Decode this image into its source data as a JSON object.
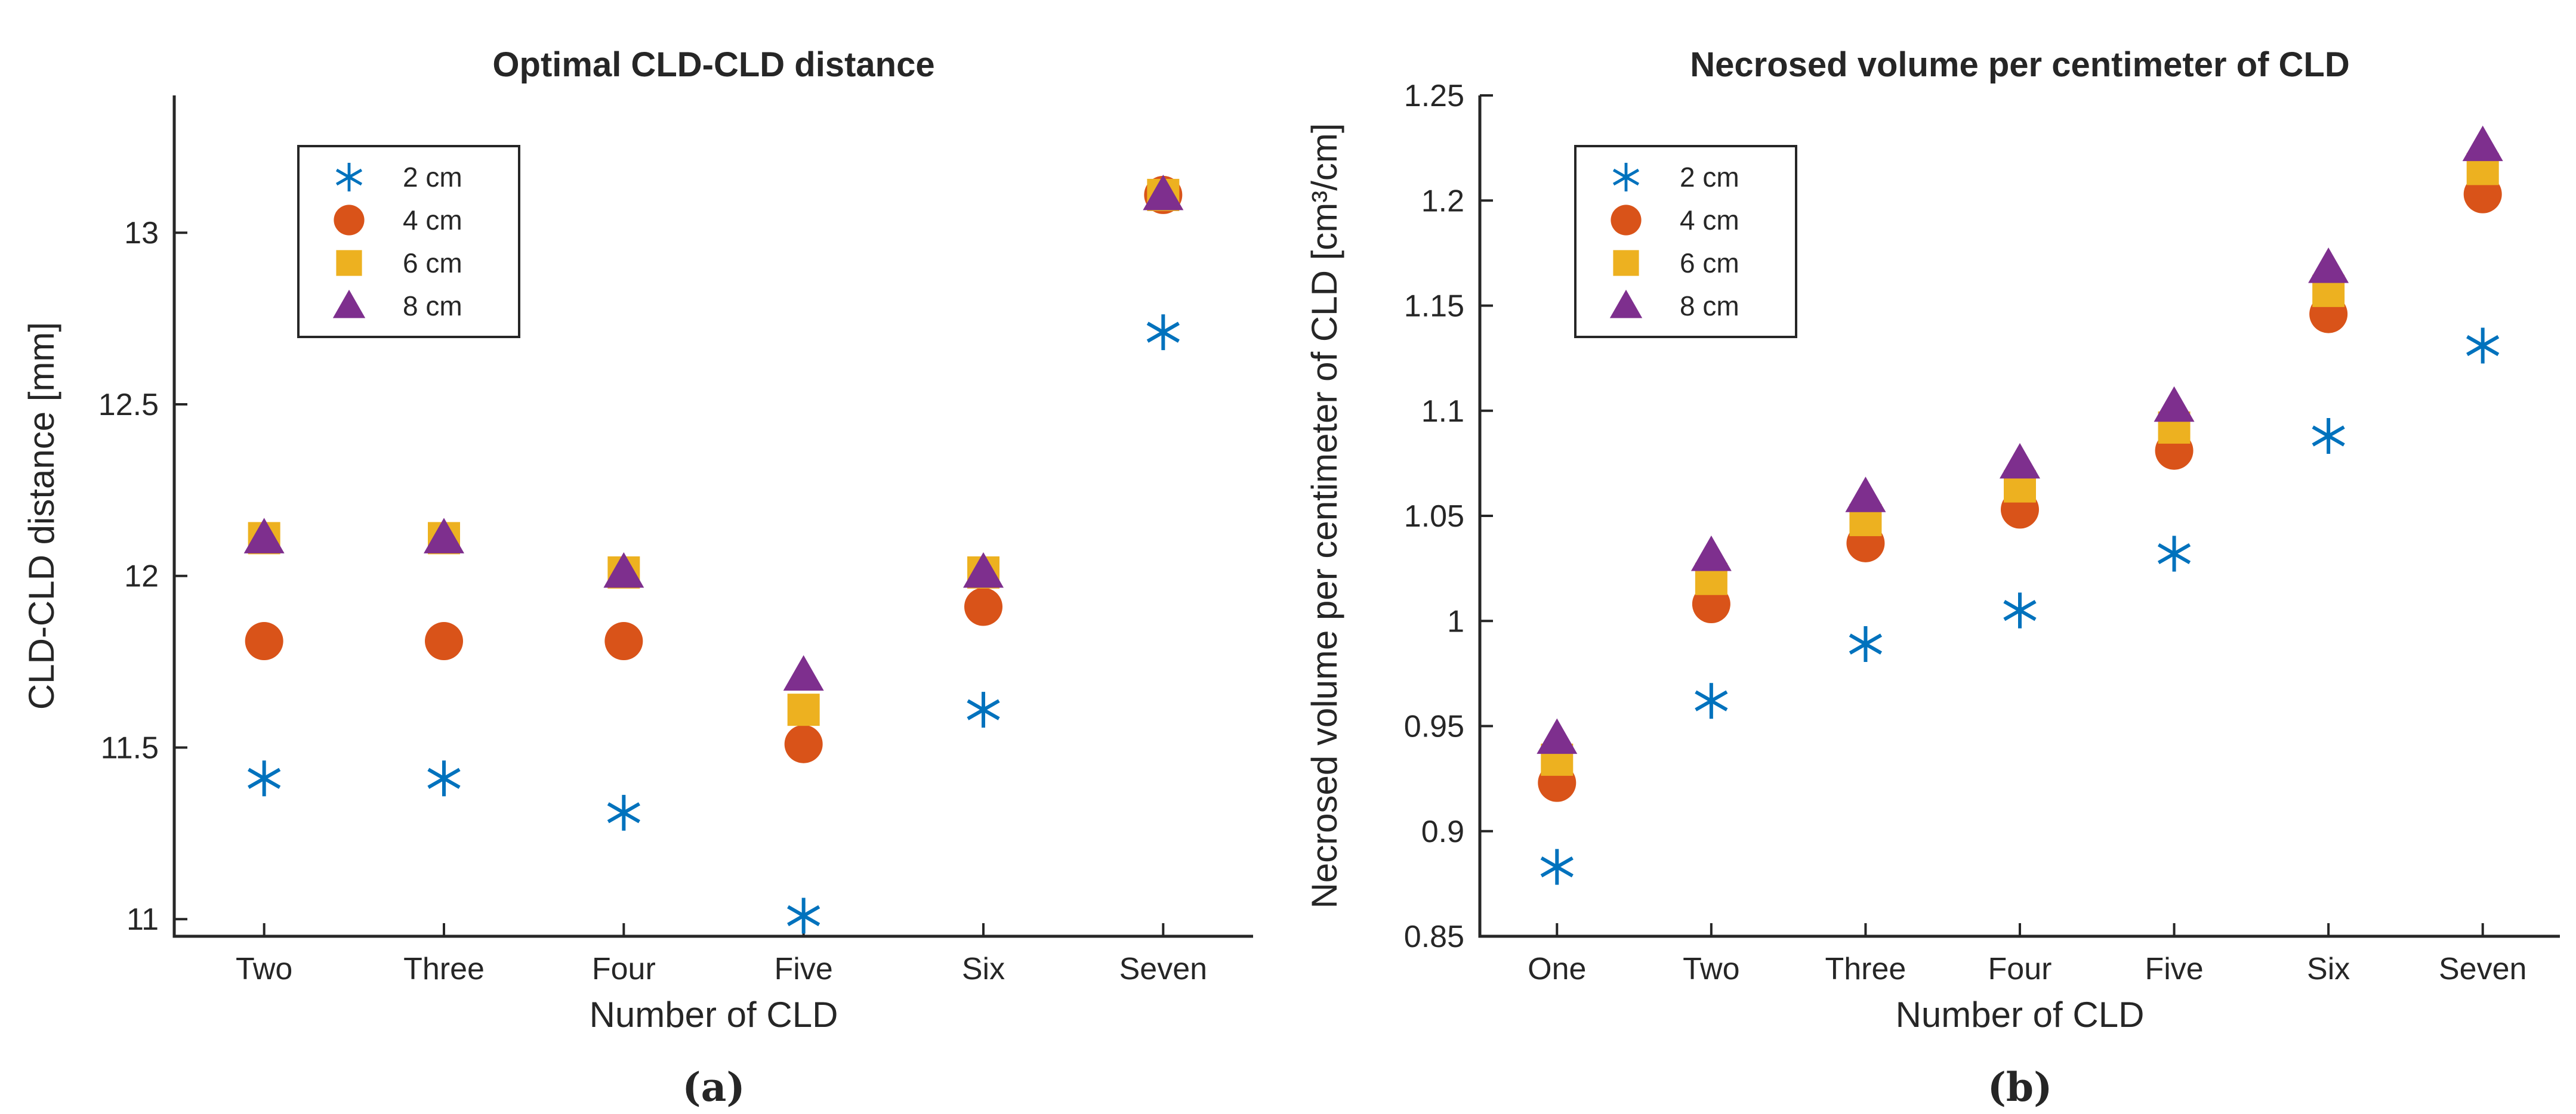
{
  "colors": {
    "s2": "#0072BD",
    "s4": "#D95319",
    "s6": "#EDB120",
    "s8": "#7E2F8E",
    "axis": "#262626"
  },
  "chart_data": [
    {
      "type": "scatter",
      "title": "Optimal CLD-CLD distance",
      "xlabel": "Number of CLD",
      "ylabel": "CLD-CLD distance [mm]",
      "caption": "(a)",
      "categories": [
        "Two",
        "Three",
        "Four",
        "Five",
        "Six",
        "Seven"
      ],
      "ylim": [
        10.95,
        13.4
      ],
      "yticks": [
        11,
        11.5,
        12,
        12.5,
        13
      ],
      "ytick_labels": [
        "11",
        "11.5",
        "12",
        "12.5",
        "13"
      ],
      "legend_position": "top-left",
      "series": [
        {
          "name": "2 cm",
          "marker": "asterisk",
          "color": "#0072BD",
          "values": [
            11.41,
            11.41,
            11.31,
            11.01,
            11.61,
            12.71
          ]
        },
        {
          "name": "4 cm",
          "marker": "circle",
          "color": "#D95319",
          "values": [
            11.81,
            11.81,
            11.81,
            11.51,
            11.91,
            13.11
          ]
        },
        {
          "name": "6 cm",
          "marker": "square",
          "color": "#EDB120",
          "values": [
            12.11,
            12.11,
            12.01,
            11.61,
            12.01,
            13.11
          ]
        },
        {
          "name": "8 cm",
          "marker": "triangle",
          "color": "#7E2F8E",
          "values": [
            12.11,
            12.11,
            12.01,
            11.71,
            12.01,
            13.11
          ]
        }
      ]
    },
    {
      "type": "scatter",
      "title": "Necrosed volume per centimeter of CLD",
      "xlabel": "Number of CLD",
      "ylabel": "Necrosed volume per centimeter of CLD [cm³/cm]",
      "caption": "(b)",
      "categories": [
        "One",
        "Two",
        "Three",
        "Four",
        "Five",
        "Six",
        "Seven"
      ],
      "ylim": [
        0.85,
        1.25
      ],
      "yticks": [
        0.85,
        0.9,
        0.95,
        1,
        1.05,
        1.1,
        1.15,
        1.2,
        1.25
      ],
      "ytick_labels": [
        "0.85",
        "0.9",
        "0.95",
        "1",
        "1.05",
        "1.1",
        "1.15",
        "1.2",
        "1.25"
      ],
      "legend_position": "top-left",
      "series": [
        {
          "name": "2 cm",
          "marker": "asterisk",
          "color": "#0072BD",
          "values": [
            0.883,
            0.962,
            0.989,
            1.005,
            1.032,
            1.088,
            1.131
          ]
        },
        {
          "name": "4 cm",
          "marker": "circle",
          "color": "#D95319",
          "values": [
            0.923,
            1.008,
            1.037,
            1.053,
            1.081,
            1.146,
            1.203
          ]
        },
        {
          "name": "6 cm",
          "marker": "square",
          "color": "#EDB120",
          "values": [
            0.934,
            1.02,
            1.048,
            1.064,
            1.092,
            1.157,
            1.215
          ]
        },
        {
          "name": "8 cm",
          "marker": "triangle",
          "color": "#7E2F8E",
          "values": [
            0.944,
            1.031,
            1.059,
            1.075,
            1.102,
            1.168,
            1.226
          ]
        }
      ]
    }
  ]
}
